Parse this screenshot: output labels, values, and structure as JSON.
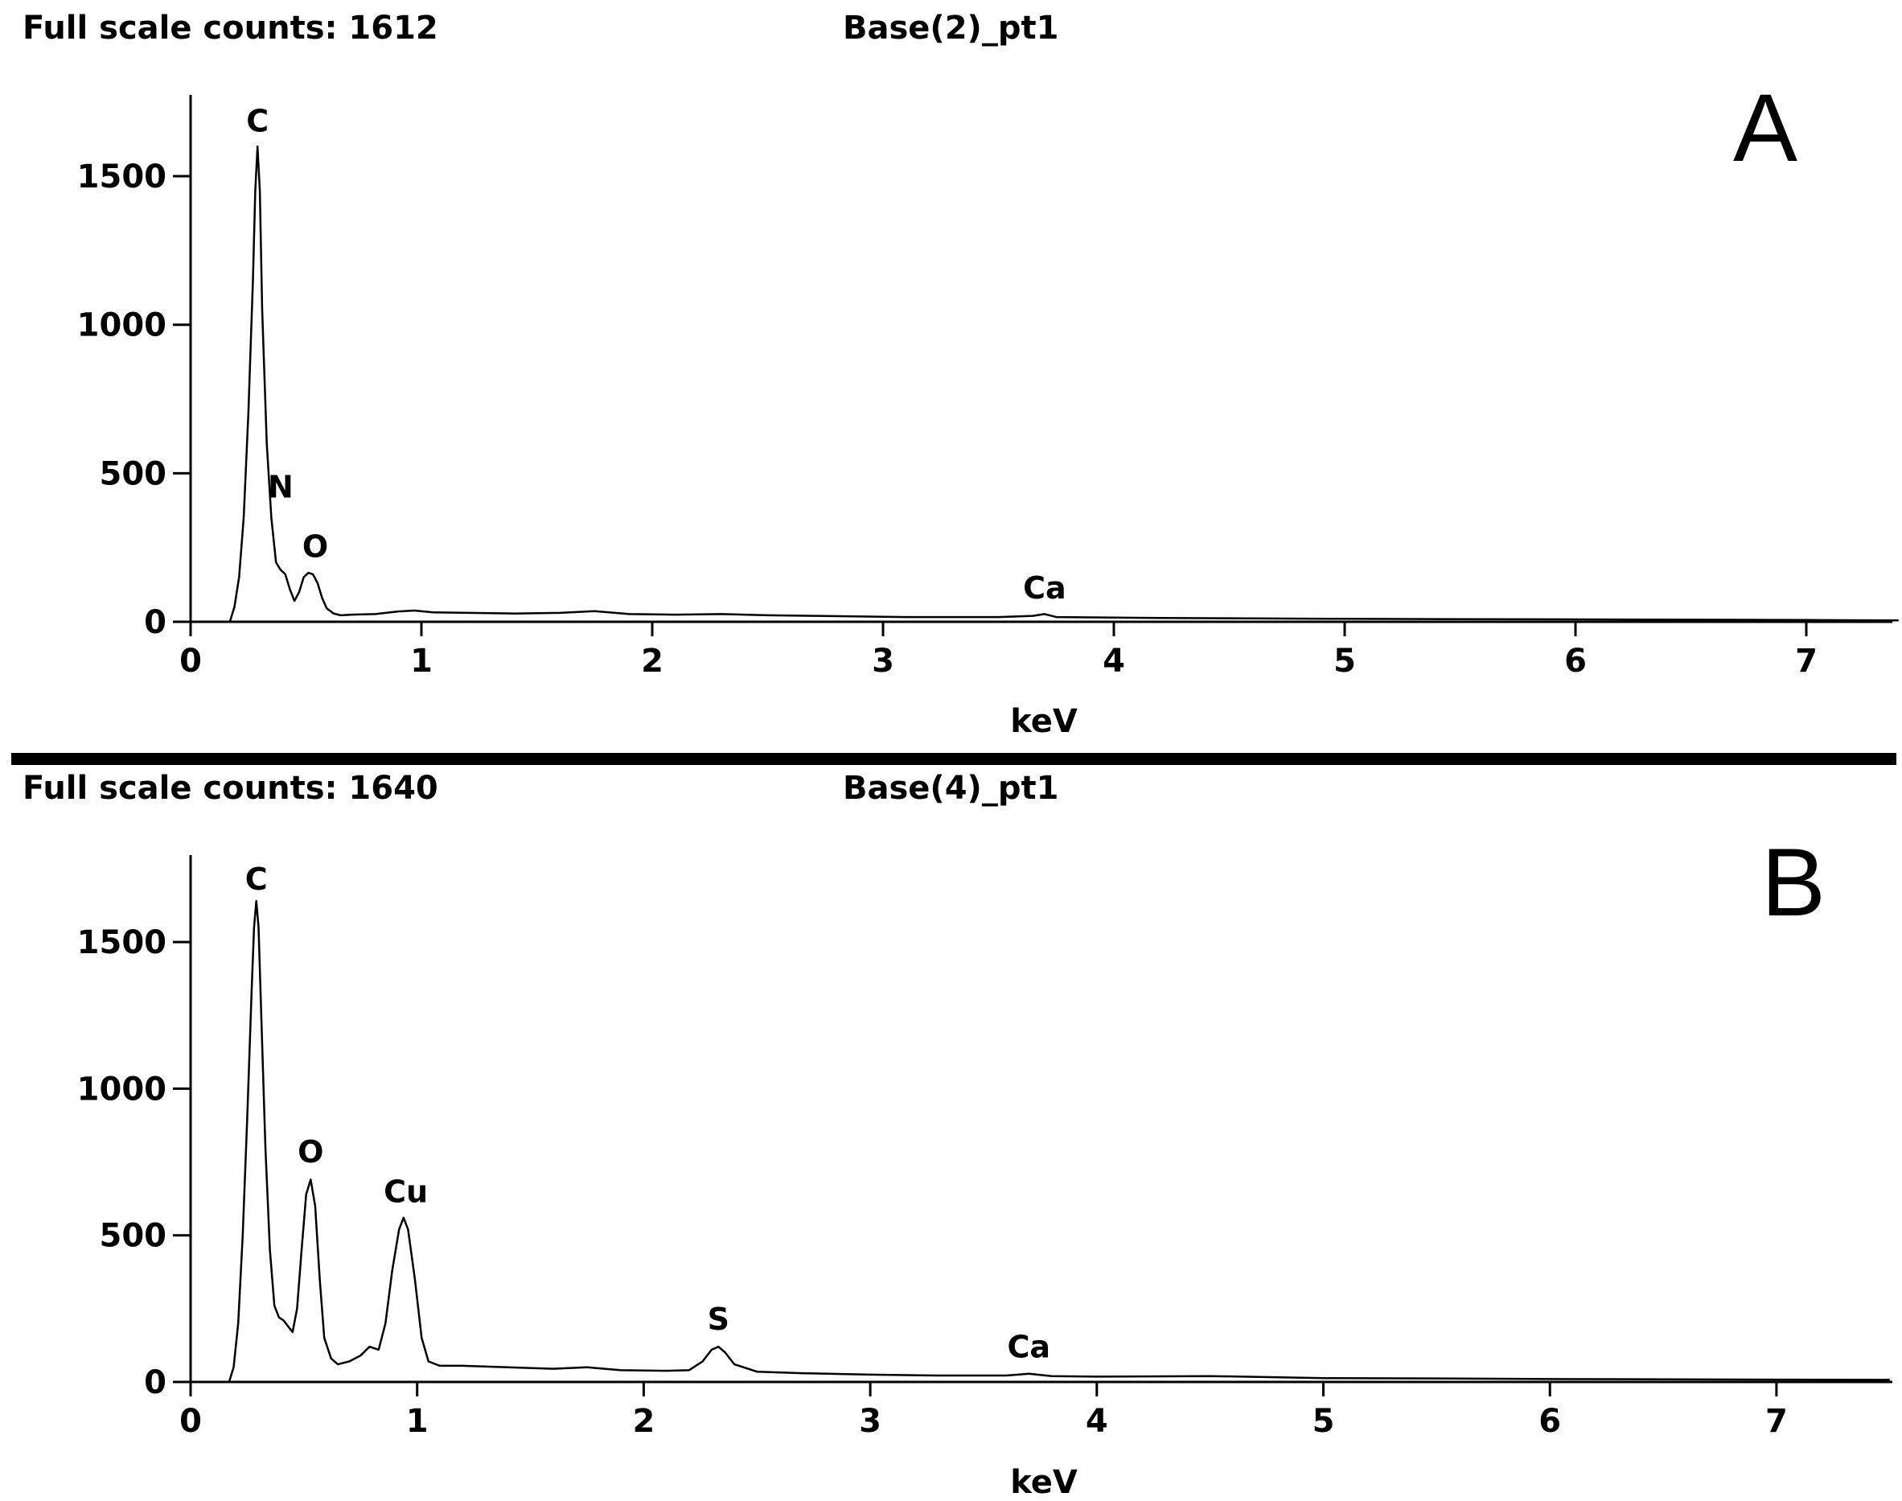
{
  "chart_data": [
    {
      "type": "line",
      "panel_letter": "A",
      "header_left": "Full scale counts: 1612",
      "header_center": "Base(2)_pt1",
      "xlabel": "keV",
      "ylabel": "",
      "xlim": [
        0,
        7.4
      ],
      "ylim": [
        0,
        1750
      ],
      "x_ticks": [
        0,
        1,
        2,
        3,
        4,
        5,
        6,
        7
      ],
      "y_ticks": [
        0,
        500,
        1000,
        1500
      ],
      "grid": false,
      "series": [
        {
          "x": [
            0,
            0.17,
            0.19,
            0.21,
            0.23,
            0.25,
            0.27,
            0.28,
            0.29,
            0.3,
            0.31,
            0.33,
            0.35,
            0.37,
            0.39,
            0.41,
            0.43,
            0.45,
            0.47,
            0.49,
            0.51,
            0.53,
            0.55,
            0.57,
            0.59,
            0.62,
            0.65,
            0.7,
            0.8,
            0.9,
            0.97,
            1.05,
            1.2,
            1.4,
            1.6,
            1.75,
            1.9,
            2.1,
            2.3,
            2.5,
            2.7,
            2.9,
            3.1,
            3.3,
            3.5,
            3.65,
            3.7,
            3.75,
            3.9,
            4.2,
            4.5,
            5.0,
            5.5,
            6.0,
            6.5,
            7.0,
            7.4
          ],
          "y": [
            0,
            0,
            50,
            150,
            350,
            700,
            1150,
            1450,
            1600,
            1450,
            1050,
            600,
            350,
            200,
            175,
            160,
            110,
            70,
            100,
            150,
            165,
            160,
            130,
            80,
            45,
            28,
            22,
            24,
            26,
            35,
            38,
            32,
            30,
            28,
            30,
            36,
            26,
            24,
            26,
            22,
            20,
            18,
            16,
            16,
            16,
            20,
            26,
            16,
            15,
            13,
            12,
            10,
            9,
            8,
            7,
            6,
            5
          ]
        }
      ],
      "annotations": [
        {
          "text": "C",
          "x": 0.29,
          "y": 1612
        },
        {
          "text": "N",
          "x": 0.39,
          "y": 380
        },
        {
          "text": "O",
          "x": 0.54,
          "y": 180
        },
        {
          "text": "Ca",
          "x": 3.7,
          "y": 40
        }
      ]
    },
    {
      "type": "line",
      "panel_letter": "B",
      "header_left": "Full scale counts: 1640",
      "header_center": "Base(4)_pt1",
      "xlabel": "keV",
      "ylabel": "",
      "xlim": [
        0,
        7.5
      ],
      "ylim": [
        0,
        1780
      ],
      "x_ticks": [
        0,
        1,
        2,
        3,
        4,
        5,
        6,
        7
      ],
      "y_ticks": [
        0,
        500,
        1000,
        1500
      ],
      "grid": false,
      "series": [
        {
          "x": [
            0,
            0.17,
            0.19,
            0.21,
            0.23,
            0.25,
            0.27,
            0.28,
            0.29,
            0.3,
            0.31,
            0.33,
            0.35,
            0.37,
            0.39,
            0.41,
            0.43,
            0.45,
            0.47,
            0.49,
            0.51,
            0.53,
            0.55,
            0.57,
            0.59,
            0.62,
            0.65,
            0.7,
            0.75,
            0.79,
            0.83,
            0.86,
            0.89,
            0.92,
            0.94,
            0.96,
            0.99,
            1.02,
            1.05,
            1.1,
            1.2,
            1.4,
            1.6,
            1.75,
            1.9,
            2.1,
            2.2,
            2.26,
            2.3,
            2.33,
            2.36,
            2.4,
            2.5,
            2.7,
            3.0,
            3.3,
            3.6,
            3.7,
            3.8,
            4.0,
            4.5,
            5.0,
            5.5,
            6.0,
            6.5,
            7.0,
            7.5
          ],
          "y": [
            0,
            0,
            50,
            200,
            500,
            900,
            1350,
            1550,
            1640,
            1550,
            1300,
            800,
            450,
            260,
            220,
            210,
            190,
            170,
            250,
            450,
            640,
            690,
            600,
            350,
            150,
            80,
            60,
            70,
            90,
            120,
            110,
            200,
            380,
            520,
            560,
            520,
            350,
            150,
            70,
            55,
            55,
            50,
            45,
            50,
            40,
            38,
            40,
            70,
            110,
            120,
            100,
            60,
            35,
            30,
            25,
            22,
            22,
            28,
            20,
            18,
            20,
            13,
            12,
            10,
            9,
            8,
            7
          ]
        }
      ],
      "annotations": [
        {
          "text": "C",
          "x": 0.29,
          "y": 1640
        },
        {
          "text": "O",
          "x": 0.53,
          "y": 710
        },
        {
          "text": "Cu",
          "x": 0.95,
          "y": 575
        },
        {
          "text": "S",
          "x": 2.33,
          "y": 140
        },
        {
          "text": "Ca",
          "x": 3.7,
          "y": 45
        }
      ]
    }
  ]
}
